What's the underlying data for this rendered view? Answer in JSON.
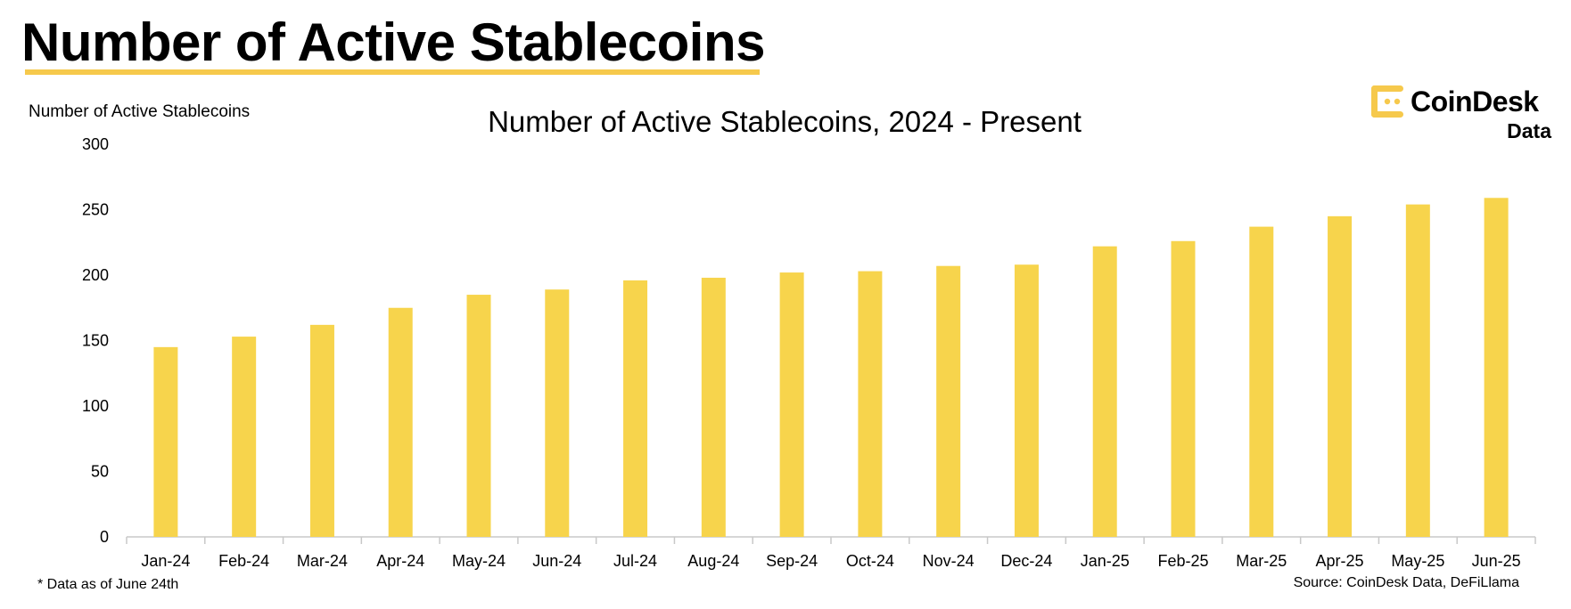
{
  "header": {
    "title": "Number of Active Stablecoins"
  },
  "logo": {
    "word": "CoinDesk",
    "sub": "Data",
    "color": "#f6c94c"
  },
  "footer": {
    "footnote": "* Data as of June 24th",
    "source": "Source: CoinDesk Data, DeFiLlama"
  },
  "chart_data": {
    "type": "bar",
    "title": "Number of Active Stablecoins, 2024 - Present",
    "xlabel": "",
    "ylabel": "Number of Active Stablecoins",
    "categories": [
      "Jan-24",
      "Feb-24",
      "Mar-24",
      "Apr-24",
      "May-24",
      "Jun-24",
      "Jul-24",
      "Aug-24",
      "Sep-24",
      "Oct-24",
      "Nov-24",
      "Dec-24",
      "Jan-25",
      "Feb-25",
      "Mar-25",
      "Apr-25",
      "May-25",
      "Jun-25"
    ],
    "values": [
      145,
      153,
      162,
      175,
      185,
      189,
      196,
      198,
      202,
      203,
      207,
      208,
      222,
      226,
      237,
      245,
      254,
      259
    ],
    "ylim": [
      0,
      300
    ],
    "yticks": [
      0,
      50,
      100,
      150,
      200,
      250,
      300
    ],
    "grid": false,
    "legend": "none",
    "bar_color": "#f7d44c"
  }
}
